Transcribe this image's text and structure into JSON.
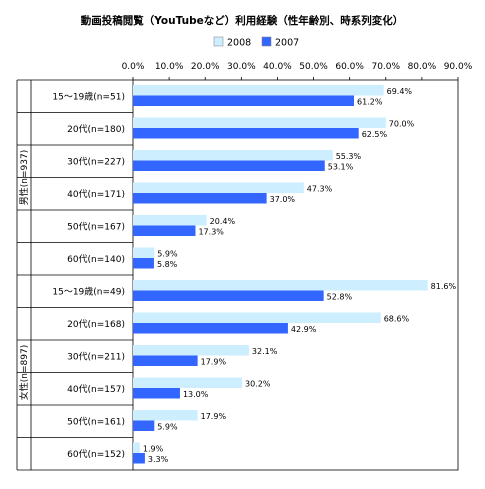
{
  "chart_data": {
    "type": "bar",
    "orientation": "horizontal",
    "title": "動画投稿閲覧（YouTubeなど）利用経験（性年齢別、時系列変化）",
    "xlim": [
      0,
      90
    ],
    "x_ticks": [
      "0.0%",
      "10.0%",
      "20.0%",
      "30.0%",
      "40.0%",
      "50.0%",
      "60.0%",
      "70.0%",
      "80.0%",
      "90.0%"
    ],
    "legend_position": "top",
    "grid": false,
    "groups": [
      {
        "label": "男性(n=937)",
        "categories": [
          "15〜19歳(n=51)",
          "20代(n=180)",
          "30代(n=227)",
          "40代(n=171)",
          "50代(n=167)",
          "60代(n=140)"
        ]
      },
      {
        "label": "女性(n=897)",
        "categories": [
          "15〜19歳(n=49)",
          "20代(n=168)",
          "30代(n=211)",
          "40代(n=157)",
          "50代(n=161)",
          "60代(n=152)"
        ]
      }
    ],
    "series": [
      {
        "name": "2008",
        "color": "#cceeff",
        "values": [
          69.4,
          70.0,
          55.3,
          47.3,
          20.4,
          5.9,
          81.6,
          68.6,
          32.1,
          30.2,
          17.9,
          1.9
        ],
        "labels": [
          "69.4%",
          "70.0%",
          "55.3%",
          "47.3%",
          "20.4%",
          "5.9%",
          "81.6%",
          "68.6%",
          "32.1%",
          "30.2%",
          "17.9%",
          "1.9%"
        ]
      },
      {
        "name": "2007",
        "color": "#3366ff",
        "values": [
          61.2,
          62.5,
          53.1,
          37.0,
          17.3,
          5.8,
          52.8,
          42.9,
          17.9,
          13.0,
          5.9,
          3.3
        ],
        "labels": [
          "61.2%",
          "62.5%",
          "53.1%",
          "37.0%",
          "17.3%",
          "5.8%",
          "52.8%",
          "42.9%",
          "17.9%",
          "13.0%",
          "5.9%",
          "3.3%"
        ]
      }
    ]
  }
}
